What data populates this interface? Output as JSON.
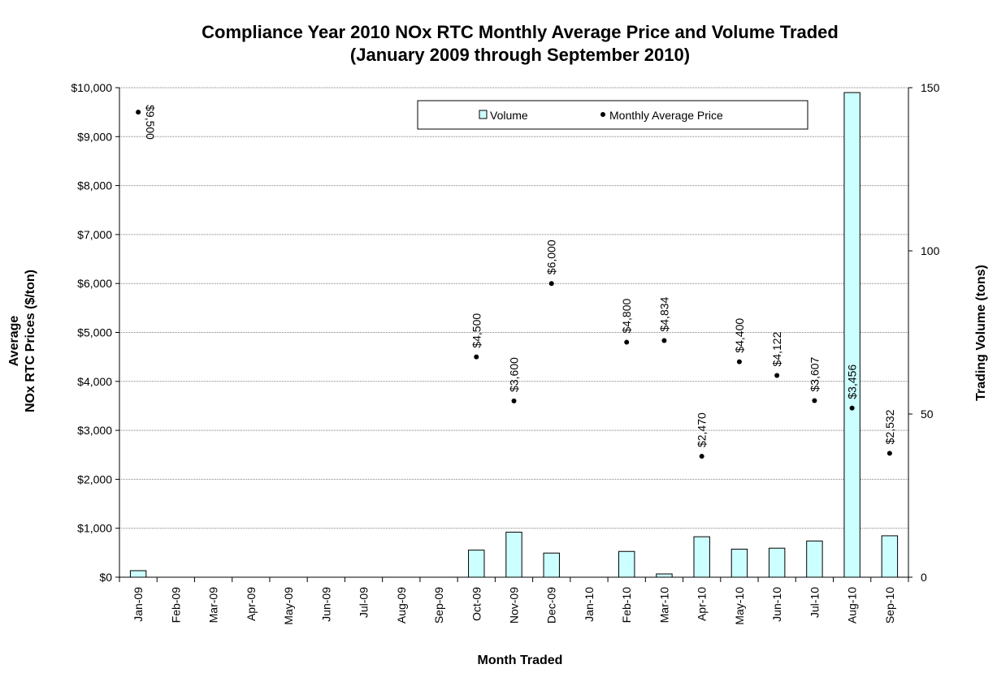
{
  "chart_data": {
    "type": "bar",
    "title": "Compliance Year 2010 NOx RTC Monthly Average Price and Volume Traded",
    "subtitle": "(January 2009 through September 2010)",
    "xlabel": "Month Traded",
    "ylabel_left_line1": "Average",
    "ylabel_left_line2": "NOx RTC Prices ($/ton)",
    "ylabel_right": "Trading Volume (tons)",
    "categories": [
      "Jan-09",
      "Feb-09",
      "Mar-09",
      "Apr-09",
      "May-09",
      "Jun-09",
      "Jul-09",
      "Aug-09",
      "Sep-09",
      "Oct-09",
      "Nov-09",
      "Dec-09",
      "Jan-10",
      "Feb-10",
      "Mar-10",
      "Apr-10",
      "May-10",
      "Jun-10",
      "Jul-10",
      "Aug-10",
      "Sep-10"
    ],
    "series": [
      {
        "name": "Volume",
        "kind": "bar",
        "axis": "right",
        "color": "#ccffff",
        "values": [
          2,
          0,
          0,
          0,
          0,
          0,
          0,
          0,
          0,
          8.3,
          13.8,
          7.4,
          0,
          7.9,
          1,
          12.4,
          8.6,
          8.9,
          11.1,
          148.5,
          12.7
        ]
      },
      {
        "name": "Monthly Average Price",
        "kind": "point",
        "axis": "left",
        "color": "#000000",
        "values": [
          9500,
          null,
          null,
          null,
          null,
          null,
          null,
          null,
          null,
          4500,
          3600,
          6000,
          null,
          4800,
          4834,
          2470,
          4400,
          4122,
          3607,
          3456,
          2532
        ],
        "labels": [
          "$9,500",
          "",
          "",
          "",
          "",
          "",
          "",
          "",
          "",
          "$4,500",
          "$3,600",
          "$6,000",
          "",
          "$4,800",
          "$4,834",
          "$2,470",
          "$4,400",
          "$4,122",
          "$3,607",
          "$3,456",
          "$2,532"
        ]
      }
    ],
    "y_left": {
      "ylim": [
        0,
        10000
      ],
      "ticks": [
        0,
        1000,
        2000,
        3000,
        4000,
        5000,
        6000,
        7000,
        8000,
        9000,
        10000
      ],
      "tick_labels": [
        "$0",
        "$1,000",
        "$2,000",
        "$3,000",
        "$4,000",
        "$5,000",
        "$6,000",
        "$7,000",
        "$8,000",
        "$9,000",
        "$10,000"
      ]
    },
    "y_right": {
      "ylim": [
        0,
        150
      ],
      "ticks": [
        0,
        50,
        100,
        150
      ],
      "tick_labels": [
        "0",
        "50",
        "100",
        "150"
      ]
    },
    "grid": true,
    "legend_position": "top-right inside plot"
  }
}
